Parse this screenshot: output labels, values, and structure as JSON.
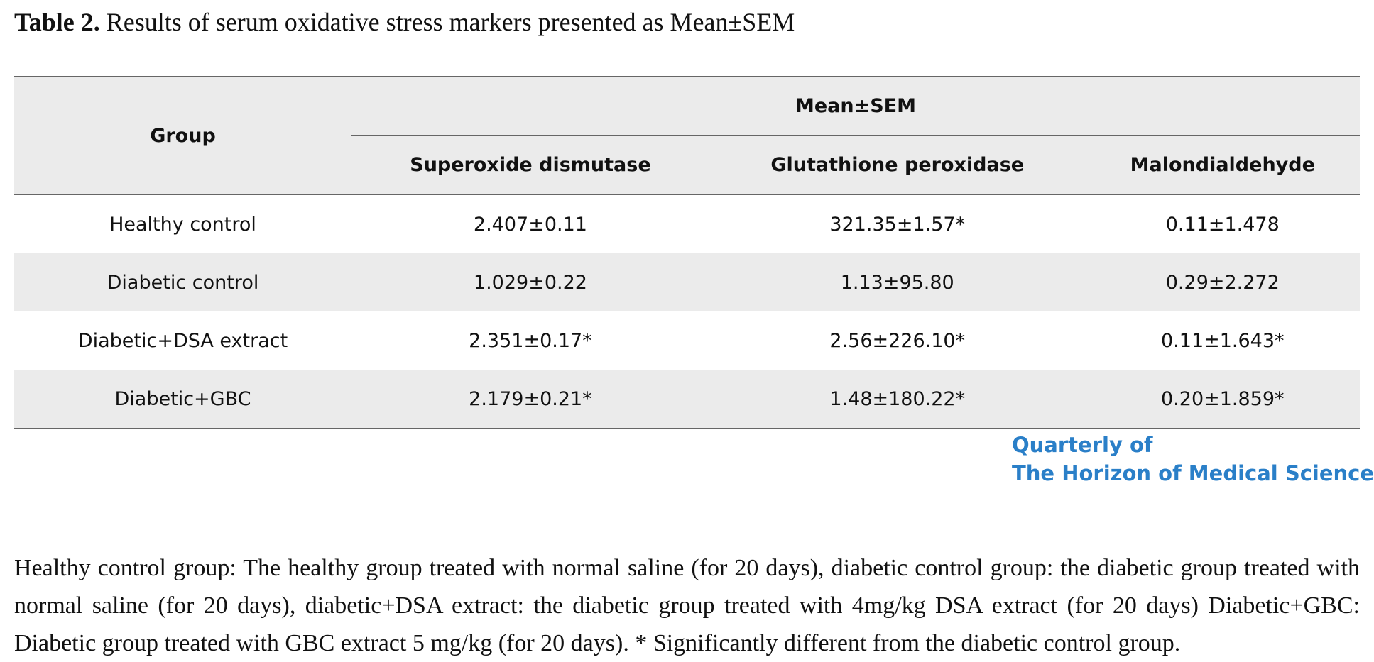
{
  "caption": {
    "label": "Table 2.",
    "text": "Results of serum oxidative stress markers presented as Mean±SEM"
  },
  "table": {
    "group_header": "Group",
    "span_header": "Mean±SEM",
    "columns": [
      "Superoxide dismutase",
      "Glutathione peroxidase",
      "Malondialdehyde"
    ],
    "rows": [
      {
        "group": "Healthy control",
        "values": [
          "2.407±0.11",
          "321.35±1.57*",
          "0.11±1.478"
        ]
      },
      {
        "group": "Diabetic control",
        "values": [
          "1.029±0.22",
          "1.13±95.80",
          "0.29±2.272"
        ]
      },
      {
        "group": "Diabetic+DSA extract",
        "values": [
          "2.351±0.17*",
          "2.56±226.10*",
          "0.11±1.643*"
        ]
      },
      {
        "group": "Diabetic+GBC",
        "values": [
          "2.179±0.21*",
          "1.48±180.22*",
          "0.20±1.859*"
        ]
      }
    ]
  },
  "logo": {
    "line1": "Quarterly of",
    "line2": "The Horizon of Medical Sciences",
    "color": "#2a7fc8"
  },
  "footnote": "Healthy control group: The healthy group treated with normal saline (for 20 days), diabetic control group: the diabetic group treated with normal saline (for 20 days), diabetic+DSA extract: the diabetic group treated with 4mg/kg DSA extract (for 20 days) Diabetic+GBC: Diabetic group treated with GBC extract 5 mg/kg (for 20 days). * Significantly different from the diabetic control group."
}
